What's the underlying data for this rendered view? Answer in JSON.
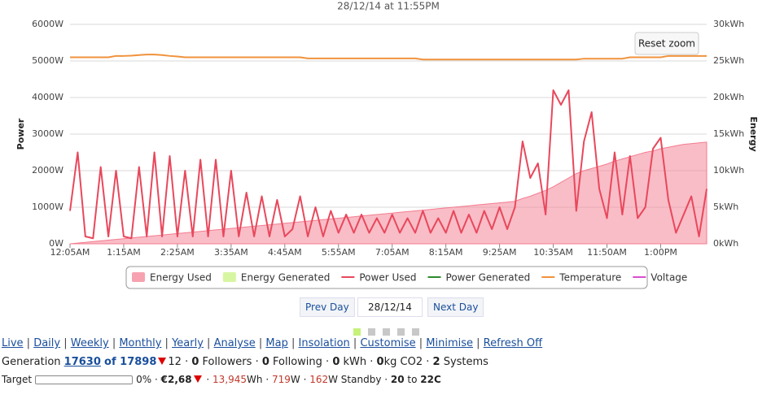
{
  "chart_data": {
    "type": "line",
    "title": "28/12/14 at 11:55PM",
    "ylabel": "Power",
    "y2label": "Energy",
    "categories": [
      "12:05AM",
      null,
      null,
      null,
      null,
      null,
      null,
      "1:15AM",
      null,
      null,
      null,
      null,
      null,
      null,
      "2:25AM",
      null,
      null,
      null,
      null,
      null,
      null,
      "3:35AM",
      null,
      null,
      null,
      null,
      null,
      null,
      "4:45AM",
      null,
      null,
      null,
      null,
      null,
      null,
      "5:55AM",
      null,
      null,
      null,
      null,
      null,
      null,
      "7:05AM",
      null,
      null,
      null,
      null,
      null,
      null,
      "8:15AM",
      null,
      null,
      null,
      null,
      null,
      null,
      "9:25AM",
      null,
      null,
      null,
      null,
      null,
      null,
      "10:35AM",
      null,
      null,
      null,
      null,
      null,
      null,
      "11:50AM",
      null,
      null,
      null,
      null,
      null,
      null,
      "1:00PM",
      null,
      null,
      null,
      null,
      null,
      null
    ],
    "ylim": [
      0,
      6000
    ],
    "yticks": [
      {
        "value": 0,
        "label": "0W"
      },
      {
        "value": 1000,
        "label": "1000W"
      },
      {
        "value": 2000,
        "label": "2000W"
      },
      {
        "value": 3000,
        "label": "3000W"
      },
      {
        "value": 4000,
        "label": "4000W"
      },
      {
        "value": 5000,
        "label": "5000W"
      },
      {
        "value": 6000,
        "label": "6000W"
      }
    ],
    "y2lim": [
      0,
      30
    ],
    "y2ticks": [
      {
        "value": 0,
        "label": "0kWh"
      },
      {
        "value": 5,
        "label": "5kWh"
      },
      {
        "value": 10,
        "label": "10kWh"
      },
      {
        "value": 15,
        "label": "15kWh"
      },
      {
        "value": 20,
        "label": "20kWh"
      },
      {
        "value": 25,
        "label": "25kWh"
      },
      {
        "value": 30,
        "label": "30kWh"
      }
    ],
    "y3lim": [
      -47,
      33
    ],
    "grid": true,
    "series": [
      {
        "name": "Energy Used",
        "kind": "area",
        "axis": "y2",
        "color": "#f47b8f",
        "values": [
          0,
          0.1,
          0.2,
          0.3,
          0.4,
          0.5,
          0.6,
          0.7,
          0.8,
          0.9,
          1,
          1.1,
          1.2,
          1.3,
          1.4,
          1.5,
          1.6,
          1.7,
          1.8,
          1.9,
          2,
          2.1,
          2.2,
          2.3,
          2.4,
          2.5,
          2.6,
          2.7,
          2.8,
          2.9,
          3,
          3.1,
          3.2,
          3.3,
          3.4,
          3.5,
          3.6,
          3.7,
          3.8,
          3.9,
          4,
          4.1,
          4.2,
          4.3,
          4.4,
          4.5,
          4.6,
          4.7,
          4.8,
          4.9,
          5,
          5.1,
          5.2,
          5.3,
          5.4,
          5.5,
          5.6,
          5.7,
          5.8,
          6.2,
          6.5,
          6.9,
          7.3,
          7.8,
          8.4,
          9,
          9.6,
          10,
          10.3,
          10.6,
          10.9,
          11.3,
          11.6,
          11.9,
          12.2,
          12.5,
          12.7,
          13,
          13.2,
          13.4,
          13.6,
          13.7,
          13.8,
          13.9
        ]
      },
      {
        "name": "Energy Generated",
        "kind": "area",
        "axis": "y2",
        "color": "#c6f27a",
        "values": [
          null,
          null,
          null,
          null,
          null,
          null,
          null,
          null,
          null,
          null,
          null,
          null,
          null,
          null,
          null,
          null,
          null,
          null,
          null,
          null,
          null,
          null,
          null,
          null,
          null,
          null,
          null,
          null,
          null,
          null,
          null,
          null,
          null,
          null,
          null,
          null,
          null,
          null,
          null,
          null,
          null,
          null,
          null,
          null,
          null,
          null,
          null,
          null,
          null,
          null,
          null,
          null,
          null,
          null,
          null,
          null,
          null,
          null,
          null,
          null,
          null,
          null,
          null,
          null,
          null,
          null,
          null,
          null,
          null,
          null,
          null,
          null,
          null,
          null,
          null,
          null,
          null,
          null,
          null,
          null,
          null,
          null,
          null,
          null
        ]
      },
      {
        "name": "Power Used",
        "kind": "line",
        "axis": "y",
        "color": "#e8485c",
        "values": [
          900,
          2500,
          200,
          150,
          2100,
          200,
          2000,
          200,
          150,
          2100,
          200,
          2500,
          200,
          2400,
          200,
          2000,
          200,
          2300,
          200,
          2300,
          200,
          2000,
          200,
          1400,
          200,
          1300,
          200,
          1200,
          200,
          400,
          1300,
          200,
          1000,
          200,
          900,
          300,
          800,
          300,
          800,
          300,
          700,
          300,
          800,
          300,
          700,
          300,
          900,
          300,
          700,
          300,
          900,
          300,
          800,
          300,
          900,
          400,
          1000,
          400,
          1000,
          2800,
          1800,
          2200,
          800,
          4200,
          3800,
          4200,
          900,
          2800,
          3600,
          1500,
          700,
          2500,
          800,
          2400,
          700,
          1000,
          2600,
          2900,
          1200,
          300,
          800,
          1300,
          200,
          1500
        ]
      },
      {
        "name": "Power Generated",
        "kind": "line",
        "axis": "y",
        "color": "#2e8b2e",
        "values": [
          null,
          null,
          null,
          null,
          null,
          null,
          null,
          null,
          null,
          null,
          null,
          null,
          null,
          null,
          null,
          null,
          null,
          null,
          null,
          null,
          null,
          null,
          null,
          null,
          null,
          null,
          null,
          null,
          null,
          null,
          null,
          null,
          null,
          null,
          null,
          null,
          null,
          null,
          null,
          null,
          null,
          null,
          null,
          null,
          null,
          null,
          null,
          null,
          null,
          null,
          null,
          null,
          null,
          null,
          null,
          null,
          null,
          null,
          null,
          null,
          null,
          null,
          null,
          null,
          null,
          null,
          null,
          null,
          null,
          null,
          null,
          null,
          null,
          null,
          null,
          null,
          null,
          null,
          null,
          null,
          null,
          null,
          null,
          null
        ]
      },
      {
        "name": "Temperature",
        "kind": "line",
        "axis": "y3",
        "color": "#f0923c",
        "values": [
          21,
          21,
          21,
          21,
          21,
          21,
          21.5,
          21.5,
          21.6,
          21.8,
          22,
          22,
          21.8,
          21.5,
          21.3,
          21,
          21,
          21,
          21,
          21,
          21,
          21,
          21,
          21,
          21,
          21,
          21,
          21,
          21,
          21,
          21,
          20.6,
          20.6,
          20.6,
          20.6,
          20.6,
          20.6,
          20.6,
          20.6,
          20.6,
          20.6,
          20.6,
          20.6,
          20.6,
          20.6,
          20.6,
          20.2,
          20.2,
          20.2,
          20.2,
          20.2,
          20.2,
          20.2,
          20.2,
          20.2,
          20.2,
          20.2,
          20.2,
          20.2,
          20.2,
          20.2,
          20.2,
          20.2,
          20.2,
          20.2,
          20.2,
          20.2,
          20.5,
          20.5,
          20.5,
          20.5,
          20.5,
          20.5,
          21,
          21,
          21,
          21,
          21,
          21.5,
          21.5,
          21.5,
          21.5,
          21.5,
          21.5
        ]
      },
      {
        "name": "Voltage",
        "kind": "line",
        "axis": "y",
        "color": "#d94fd0",
        "values": [
          null,
          null,
          null,
          null,
          null,
          null,
          null,
          null,
          null,
          null,
          null,
          null,
          null,
          null,
          null,
          null,
          null,
          null,
          null,
          null,
          null,
          null,
          null,
          null,
          null,
          null,
          null,
          null,
          null,
          null,
          null,
          null,
          null,
          null,
          null,
          null,
          null,
          null,
          null,
          null,
          null,
          null,
          null,
          null,
          null,
          null,
          null,
          null,
          null,
          null,
          null,
          null,
          null,
          null,
          null,
          null,
          null,
          null,
          null,
          null,
          null,
          null,
          null,
          null,
          null,
          null,
          null,
          null,
          null,
          null,
          null,
          null,
          null,
          null,
          null,
          null,
          null,
          null,
          null,
          null,
          null,
          null,
          null,
          null
        ]
      }
    ]
  },
  "reset_zoom": "Reset zoom",
  "nav": {
    "prev": "Prev Day",
    "date": "28/12/14",
    "next": "Next Day"
  },
  "links": [
    "Live",
    "Daily",
    "Weekly",
    "Monthly",
    "Yearly",
    "Analyse",
    "Map",
    "Insolation",
    "Customise",
    "Minimise",
    "Refresh Off"
  ],
  "generation": {
    "label": "Generation",
    "value": "17630",
    "of": "of 17898",
    "rank_change": "12",
    "followers": "0",
    "followers_label": "Followers",
    "following": "0",
    "following_label": "Following",
    "kwh": "0",
    "kwh_label": "kWh",
    "co2": "0",
    "co2_label": "kg CO2",
    "systems": "2",
    "systems_label": "Systems"
  },
  "target": {
    "label": "Target",
    "percent": "0%",
    "cost": "€2,68",
    "energy": "13,945",
    "energy_unit": "Wh",
    "power": "719",
    "power_unit": "W",
    "standby": "162",
    "standby_label": "W Standby",
    "temp_low": "20",
    "temp_to": "to",
    "temp_high": "22C"
  }
}
